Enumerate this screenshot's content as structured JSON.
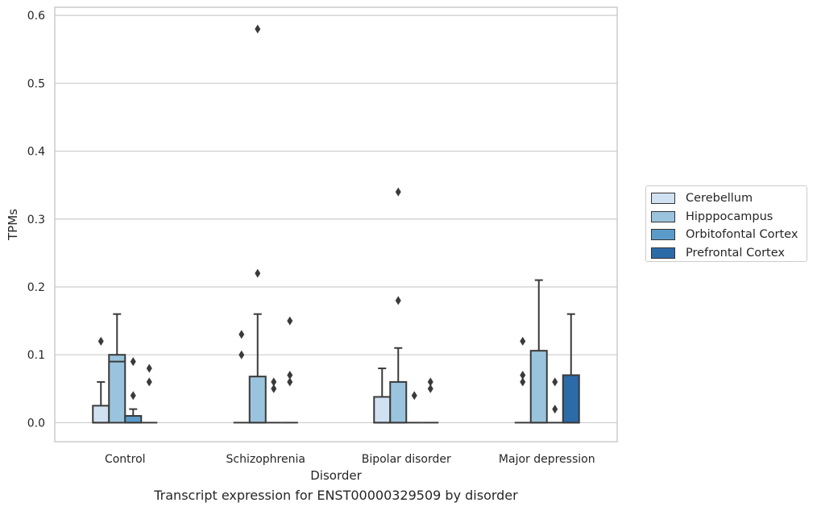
{
  "caption": "Transcript expression for ENST00000329509 by disorder",
  "chart_data": {
    "type": "box",
    "xlabel": "Disorder",
    "ylabel": "TPMs",
    "ylim": [
      -0.028,
      0.612
    ],
    "yticks": [
      0.0,
      0.1,
      0.2,
      0.3,
      0.4,
      0.5,
      0.6
    ],
    "ytick_labels": [
      "0.0",
      "0.1",
      "0.2",
      "0.3",
      "0.4",
      "0.5",
      "0.6"
    ],
    "grid": "horizontal",
    "legend_position": "right",
    "categories": [
      "Control",
      "Schizophrenia",
      "Bipolar disorder",
      "Major depression"
    ],
    "series": [
      {
        "name": "Cerebellum",
        "color": "#d0e1f2",
        "boxes": [
          {
            "q1": 0.0,
            "median": 0.0,
            "q3": 0.025,
            "whisker_low": 0.0,
            "whisker_high": 0.06,
            "outliers": [
              0.12
            ]
          },
          {
            "q1": 0.0,
            "median": 0.0,
            "q3": 0.0,
            "whisker_low": 0.0,
            "whisker_high": 0.0,
            "outliers": [
              0.1,
              0.13
            ]
          },
          {
            "q1": 0.0,
            "median": 0.0,
            "q3": 0.038,
            "whisker_low": 0.0,
            "whisker_high": 0.08,
            "outliers": []
          },
          {
            "q1": 0.0,
            "median": 0.0,
            "q3": 0.0,
            "whisker_low": 0.0,
            "whisker_high": 0.0,
            "outliers": [
              0.06,
              0.07,
              0.12
            ]
          }
        ]
      },
      {
        "name": "Hipppocampus",
        "color": "#9ac4de",
        "boxes": [
          {
            "q1": 0.0,
            "median": 0.09,
            "q3": 0.1,
            "whisker_low": 0.0,
            "whisker_high": 0.16,
            "outliers": []
          },
          {
            "q1": 0.0,
            "median": 0.0,
            "q3": 0.068,
            "whisker_low": 0.0,
            "whisker_high": 0.16,
            "outliers": [
              0.22,
              0.58
            ]
          },
          {
            "q1": 0.0,
            "median": 0.0,
            "q3": 0.06,
            "whisker_low": 0.0,
            "whisker_high": 0.11,
            "outliers": [
              0.18,
              0.34
            ]
          },
          {
            "q1": 0.0,
            "median": 0.0,
            "q3": 0.106,
            "whisker_low": 0.0,
            "whisker_high": 0.21,
            "outliers": []
          }
        ]
      },
      {
        "name": "Orbitofontal Cortex",
        "color": "#5b9bc9",
        "boxes": [
          {
            "q1": 0.0,
            "median": 0.0,
            "q3": 0.01,
            "whisker_low": 0.0,
            "whisker_high": 0.02,
            "outliers": [
              0.04,
              0.09
            ]
          },
          {
            "q1": 0.0,
            "median": 0.0,
            "q3": 0.0,
            "whisker_low": 0.0,
            "whisker_high": 0.0,
            "outliers": [
              0.05,
              0.06
            ]
          },
          {
            "q1": 0.0,
            "median": 0.0,
            "q3": 0.0,
            "whisker_low": 0.0,
            "whisker_high": 0.0,
            "outliers": [
              0.04
            ]
          },
          {
            "q1": 0.0,
            "median": 0.0,
            "q3": 0.0,
            "whisker_low": 0.0,
            "whisker_high": 0.0,
            "outliers": [
              0.02,
              0.06
            ]
          }
        ]
      },
      {
        "name": "Prefrontal Cortex",
        "color": "#2b6ba8",
        "boxes": [
          {
            "q1": 0.0,
            "median": 0.0,
            "q3": 0.0,
            "whisker_low": 0.0,
            "whisker_high": 0.0,
            "outliers": [
              0.06,
              0.08
            ]
          },
          {
            "q1": 0.0,
            "median": 0.0,
            "q3": 0.0,
            "whisker_low": 0.0,
            "whisker_high": 0.0,
            "outliers": [
              0.06,
              0.07,
              0.15
            ]
          },
          {
            "q1": 0.0,
            "median": 0.0,
            "q3": 0.0,
            "whisker_low": 0.0,
            "whisker_high": 0.0,
            "outliers": [
              0.05,
              0.06
            ]
          },
          {
            "q1": 0.0,
            "median": 0.0,
            "q3": 0.07,
            "whisker_low": 0.0,
            "whisker_high": 0.16,
            "outliers": []
          }
        ]
      }
    ]
  }
}
